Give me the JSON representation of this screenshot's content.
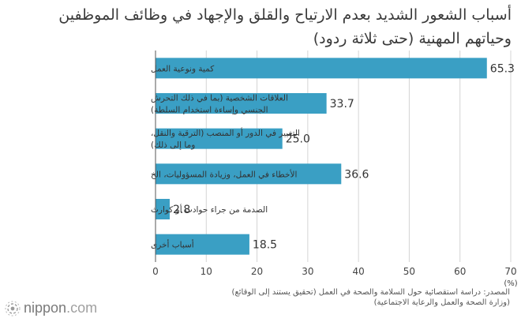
{
  "title": {
    "line1": "أسباب الشعور الشديد بعدم الارتياح والقلق والإجهاد في وظائف الموظفين",
    "line2": "وحياتهم المهنية (حتى ثلاثة ردود)"
  },
  "chart_data": {
    "type": "bar",
    "orientation": "horizontal",
    "categories": [
      [
        "كمية ونوعية العمل"
      ],
      [
        "العلاقات الشخصية (بما في ذلك التحرش",
        "الجنسي وإساءة استخدام السلطة)"
      ],
      [
        "التغيير في الدور أو المنصب (الترقية والنقل،",
        "وما إلى ذلك)"
      ],
      [
        "الأخطاء في العمل، وزيادة المسؤوليات، الخ"
      ],
      [
        "الصدمة من جراء حوادث أو كوارث"
      ],
      [
        "أسباب أخرى"
      ]
    ],
    "values": [
      65.3,
      33.7,
      25.0,
      36.6,
      2.8,
      18.5
    ],
    "value_labels": [
      "65.3",
      "33.7",
      "25.0",
      "36.6",
      "2.8",
      "18.5"
    ],
    "xlim": [
      0,
      70
    ],
    "xticks": [
      "0",
      "10",
      "20",
      "30",
      "40",
      "50",
      "60",
      "70"
    ],
    "xlabel": "(%)",
    "bar_color": "#3a9fc4",
    "grid": "vertical"
  },
  "source": {
    "line1": "المصدر: دراسة استقصائية حول السلامة والصحة في العمل (تحقيق يستند إلى الوقائع)",
    "line2": "(وزارة الصحة والعمل والرعاية الاجتماعية)"
  },
  "logo": {
    "name": "nippon",
    "tld": ".com"
  }
}
